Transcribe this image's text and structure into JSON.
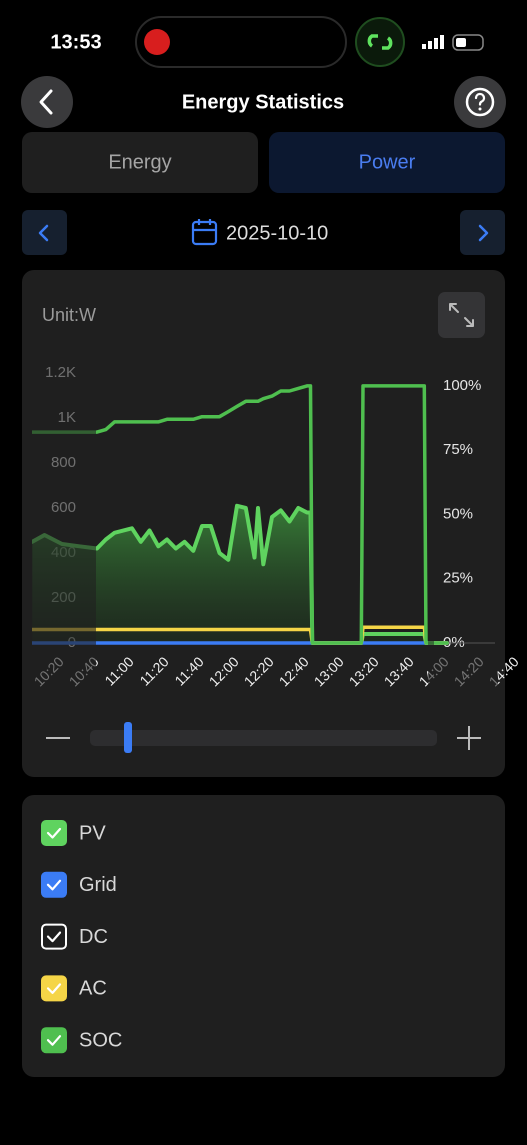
{
  "status_bar": {
    "time": "13:53"
  },
  "header": {
    "title": "Energy Statistics"
  },
  "tabs": {
    "items": [
      "Energy",
      "Power"
    ],
    "active": 1
  },
  "date": "2025-10-10",
  "chart_data": {
    "type": "line",
    "unit_label": "Unit:W",
    "ylim": [
      0,
      1200
    ],
    "yticks": [
      0,
      200,
      400,
      600,
      800,
      {
        "value": 1000,
        "label": "1K"
      },
      {
        "value": 1200,
        "label": "1.2K"
      }
    ],
    "y2lim": [
      0,
      105
    ],
    "y2ticks": [
      {
        "value": 0,
        "label": "0%"
      },
      {
        "value": 25,
        "label": "25%"
      },
      {
        "value": 50,
        "label": "50%"
      },
      {
        "value": 75,
        "label": "75%"
      },
      {
        "value": 100,
        "label": "100%"
      }
    ],
    "xticks": [
      "10:20",
      "10:40",
      "11:00",
      "11:20",
      "11:40",
      "12:00",
      "12:20",
      "12:40",
      "13:00",
      "13:20",
      "13:40",
      "14:00",
      "14:20",
      "14:40"
    ],
    "x": [
      "10:03",
      "10:10",
      "10:20",
      "10:30",
      "10:40",
      "10:45",
      "10:50",
      "11:00",
      "11:05",
      "11:10",
      "11:15",
      "11:20",
      "11:25",
      "11:30",
      "11:35",
      "11:40",
      "11:45",
      "11:50",
      "11:55",
      "12:00",
      "12:05",
      "12:10",
      "12:12",
      "12:15",
      "12:20",
      "12:25",
      "12:30",
      "12:35",
      "12:40",
      "12:42",
      "12:43",
      "13:11",
      "13:12",
      "13:47",
      "13:48",
      "14:00"
    ],
    "grid": false,
    "series": [
      {
        "name": "PV",
        "color": "#5fd35f",
        "checked": true,
        "fill": true,
        "values": [
          450,
          480,
          440,
          430,
          420,
          460,
          490,
          510,
          450,
          500,
          430,
          460,
          420,
          450,
          410,
          520,
          520,
          400,
          370,
          610,
          600,
          380,
          600,
          350,
          560,
          590,
          540,
          600,
          580,
          580,
          0,
          0,
          40,
          40,
          0,
          0
        ]
      },
      {
        "name": "Grid",
        "color": "#3b7cf5",
        "checked": true,
        "values": [
          0,
          0,
          0,
          0,
          0,
          0,
          0,
          0,
          0,
          0,
          0,
          0,
          0,
          0,
          0,
          0,
          0,
          0,
          0,
          0,
          0,
          0,
          0,
          0,
          0,
          0,
          0,
          0,
          0,
          0,
          0,
          0,
          0,
          0,
          0,
          0
        ]
      },
      {
        "name": "DC",
        "color": "#ffffff",
        "checked": false
      },
      {
        "name": "AC",
        "color": "#f5d547",
        "checked": true,
        "values": [
          60,
          60,
          60,
          60,
          60,
          60,
          60,
          60,
          60,
          60,
          60,
          60,
          60,
          60,
          60,
          60,
          60,
          60,
          60,
          60,
          60,
          60,
          60,
          60,
          60,
          60,
          60,
          60,
          60,
          60,
          0,
          0,
          70,
          70,
          0,
          0
        ]
      },
      {
        "name": "SOC",
        "color": "#4fbf4f",
        "checked": true,
        "axis": "y2",
        "values": [
          82,
          82,
          82,
          82,
          82,
          83,
          86,
          86,
          86,
          86,
          86,
          87,
          87,
          87,
          87,
          88,
          88,
          88,
          90,
          92,
          94,
          94,
          94,
          95,
          96,
          98,
          98,
          99,
          100,
          100,
          0,
          0,
          100,
          100,
          0,
          0
        ]
      }
    ]
  }
}
